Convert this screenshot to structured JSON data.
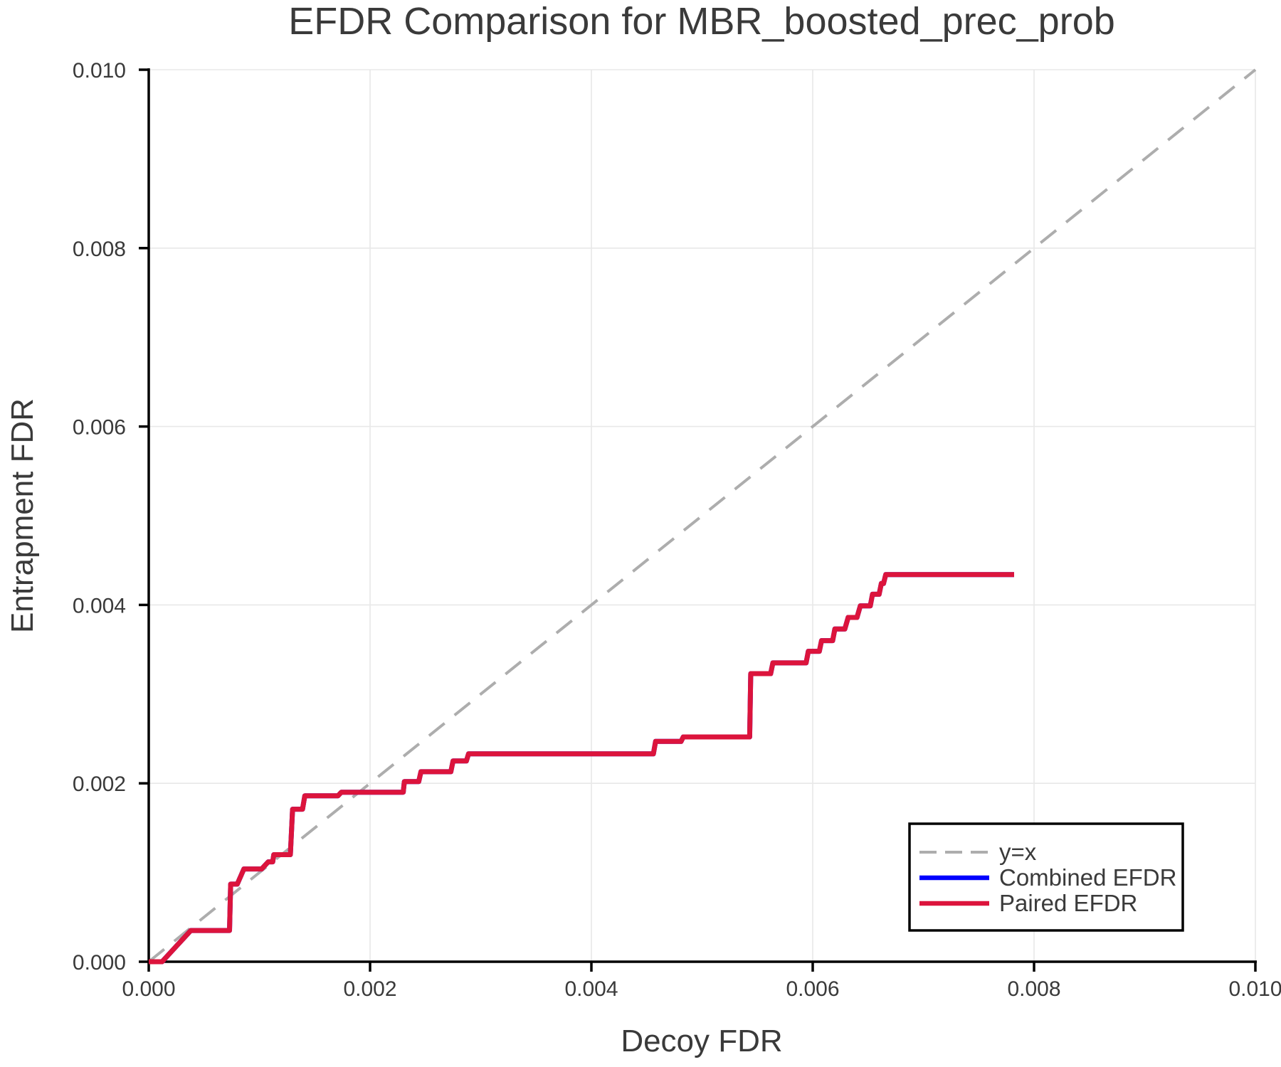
{
  "colors": {
    "background": "#ffffff",
    "axis_spine": "#000000",
    "grid": "#e8e8e8",
    "text": "#3a3a3a",
    "identity_line": "#adadad",
    "combined_efdr": "#0000ff",
    "paired_efdr": "#dc143c",
    "legend_border": "#000000",
    "legend_background": "#ffffff"
  },
  "chart_data": {
    "type": "line",
    "title": "EFDR Comparison for MBR_boosted_prec_prob",
    "xlabel": "Decoy FDR",
    "ylabel": "Entrapment FDR",
    "xlim": [
      0.0,
      0.01
    ],
    "ylim": [
      0.0,
      0.01
    ],
    "grid": true,
    "xticks": {
      "values": [
        0.0,
        0.002,
        0.004,
        0.006,
        0.008,
        0.01
      ],
      "labels": [
        "0.000",
        "0.002",
        "0.004",
        "0.006",
        "0.008",
        "0.010"
      ]
    },
    "yticks": {
      "values": [
        0.0,
        0.002,
        0.004,
        0.006,
        0.008,
        0.01
      ],
      "labels": [
        "0.000",
        "0.002",
        "0.004",
        "0.006",
        "0.008",
        "0.010"
      ]
    },
    "legend": {
      "position": "lower right",
      "entries": [
        "y=x",
        "Combined EFDR",
        "Paired EFDR"
      ]
    },
    "series": [
      {
        "name": "y=x",
        "color": "#adadad",
        "style": "dashed",
        "width": 4,
        "points": [
          [
            0.0,
            0.0
          ],
          [
            0.01,
            0.01
          ]
        ]
      },
      {
        "name": "Combined EFDR",
        "color": "#0000ff",
        "style": "solid",
        "width": 7,
        "points": [
          [
            0.0,
            0.0
          ],
          [
            0.00012,
            0.0
          ],
          [
            0.00038,
            0.00035
          ],
          [
            0.00073,
            0.00035
          ],
          [
            0.00074,
            0.00087
          ],
          [
            0.0008,
            0.00087
          ],
          [
            0.00086,
            0.00104
          ],
          [
            0.00102,
            0.00104
          ],
          [
            0.00108,
            0.00112
          ],
          [
            0.00112,
            0.00112
          ],
          [
            0.00113,
            0.0012
          ],
          [
            0.00128,
            0.0012
          ],
          [
            0.0013,
            0.00171
          ],
          [
            0.00139,
            0.00171
          ],
          [
            0.00141,
            0.00186
          ],
          [
            0.00171,
            0.00186
          ],
          [
            0.00174,
            0.0019
          ],
          [
            0.0023,
            0.0019
          ],
          [
            0.00231,
            0.00202
          ],
          [
            0.00244,
            0.00202
          ],
          [
            0.00246,
            0.00213
          ],
          [
            0.00273,
            0.00213
          ],
          [
            0.00275,
            0.00225
          ],
          [
            0.00287,
            0.00225
          ],
          [
            0.00289,
            0.00233
          ],
          [
            0.00456,
            0.00233
          ],
          [
            0.00458,
            0.00247
          ],
          [
            0.00481,
            0.00247
          ],
          [
            0.00483,
            0.00252
          ],
          [
            0.00543,
            0.00252
          ],
          [
            0.00544,
            0.00323
          ],
          [
            0.00562,
            0.00323
          ],
          [
            0.00564,
            0.00335
          ],
          [
            0.00594,
            0.00335
          ],
          [
            0.00596,
            0.00348
          ],
          [
            0.00606,
            0.00348
          ],
          [
            0.00608,
            0.0036
          ],
          [
            0.00618,
            0.0036
          ],
          [
            0.0062,
            0.00373
          ],
          [
            0.00629,
            0.00373
          ],
          [
            0.00632,
            0.00386
          ],
          [
            0.0064,
            0.00386
          ],
          [
            0.00643,
            0.00399
          ],
          [
            0.00652,
            0.00399
          ],
          [
            0.00654,
            0.00412
          ],
          [
            0.0066,
            0.00412
          ],
          [
            0.00662,
            0.00424
          ],
          [
            0.00664,
            0.00424
          ],
          [
            0.00666,
            0.00434
          ],
          [
            0.00782,
            0.00434
          ]
        ]
      },
      {
        "name": "Paired EFDR",
        "color": "#dc143c",
        "style": "solid",
        "width": 7,
        "points": [
          [
            0.0,
            0.0
          ],
          [
            0.00012,
            0.0
          ],
          [
            0.00038,
            0.00035
          ],
          [
            0.00073,
            0.00035
          ],
          [
            0.00074,
            0.00087
          ],
          [
            0.0008,
            0.00087
          ],
          [
            0.00086,
            0.00104
          ],
          [
            0.00102,
            0.00104
          ],
          [
            0.00108,
            0.00112
          ],
          [
            0.00112,
            0.00112
          ],
          [
            0.00113,
            0.0012
          ],
          [
            0.00128,
            0.0012
          ],
          [
            0.0013,
            0.00171
          ],
          [
            0.00139,
            0.00171
          ],
          [
            0.00141,
            0.00186
          ],
          [
            0.00171,
            0.00186
          ],
          [
            0.00174,
            0.0019
          ],
          [
            0.0023,
            0.0019
          ],
          [
            0.00231,
            0.00202
          ],
          [
            0.00244,
            0.00202
          ],
          [
            0.00246,
            0.00213
          ],
          [
            0.00273,
            0.00213
          ],
          [
            0.00275,
            0.00225
          ],
          [
            0.00287,
            0.00225
          ],
          [
            0.00289,
            0.00233
          ],
          [
            0.00456,
            0.00233
          ],
          [
            0.00458,
            0.00247
          ],
          [
            0.00481,
            0.00247
          ],
          [
            0.00483,
            0.00252
          ],
          [
            0.00543,
            0.00252
          ],
          [
            0.00544,
            0.00323
          ],
          [
            0.00562,
            0.00323
          ],
          [
            0.00564,
            0.00335
          ],
          [
            0.00594,
            0.00335
          ],
          [
            0.00596,
            0.00348
          ],
          [
            0.00606,
            0.00348
          ],
          [
            0.00608,
            0.0036
          ],
          [
            0.00618,
            0.0036
          ],
          [
            0.0062,
            0.00373
          ],
          [
            0.00629,
            0.00373
          ],
          [
            0.00632,
            0.00386
          ],
          [
            0.0064,
            0.00386
          ],
          [
            0.00643,
            0.00399
          ],
          [
            0.00652,
            0.00399
          ],
          [
            0.00654,
            0.00412
          ],
          [
            0.0066,
            0.00412
          ],
          [
            0.00662,
            0.00424
          ],
          [
            0.00664,
            0.00424
          ],
          [
            0.00666,
            0.00434
          ],
          [
            0.00782,
            0.00434
          ]
        ]
      }
    ]
  }
}
